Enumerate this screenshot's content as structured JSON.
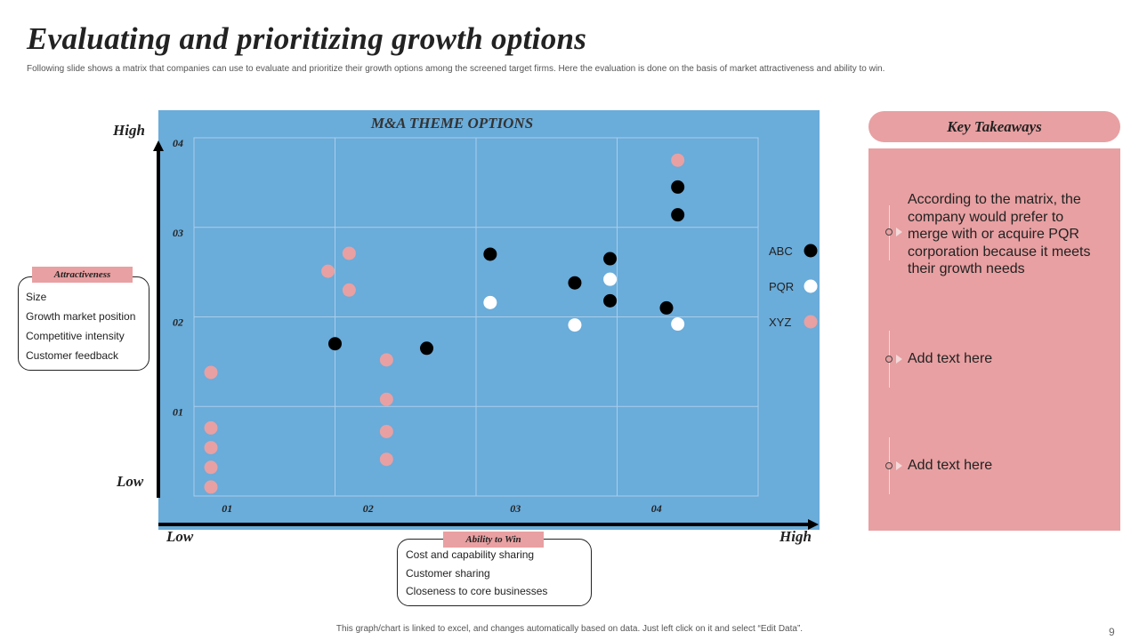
{
  "title": "Evaluating and prioritizing growth options",
  "subtitle": "Following slide shows a matrix that companies can use to evaluate and prioritize their growth options among the screened target firms. Here the evaluation is done on the basis of market attractiveness and ability to win.",
  "vertical_axis": {
    "high": "High",
    "low": "Low"
  },
  "horizontal_axis": {
    "low": "Low",
    "high": "High"
  },
  "attractiveness": {
    "tag": "Attractiveness",
    "items": [
      "Size",
      "Growth market position",
      "Competitive intensity",
      "Customer feedback"
    ]
  },
  "ability_to_win": {
    "tag": "Ability to Win",
    "items": [
      "Cost and capability sharing",
      "Customer sharing",
      "Closeness to core businesses"
    ]
  },
  "key_takeaways": {
    "header": "Key Takeaways",
    "items": [
      "According to the matrix, the company would prefer to merge with or acquire PQR corporation because it meets their growth needs",
      "Add text here",
      "Add text here"
    ]
  },
  "footer": "This graph/chart is linked to excel, and changes automatically based on data. Just left click on it and select “Edit Data”.",
  "page_number": "9",
  "colors": {
    "plot_bg": "#6aacda",
    "accent_pink": "#e8a0a2",
    "abc": "#000000",
    "pqr": "#ffffff",
    "xyz": "#e8a0a2"
  },
  "chart_data": {
    "type": "scatter",
    "title": "M&A THEME OPTIONS",
    "xlim": [
      0.5,
      4.5
    ],
    "ylim": [
      0,
      4
    ],
    "x_ticks": [
      "01",
      "02",
      "03",
      "04"
    ],
    "y_ticks": [
      "01",
      "02",
      "03",
      "04"
    ],
    "grid": true,
    "legend_position": "right",
    "series": [
      {
        "name": "ABC",
        "color": "#000000",
        "points": [
          [
            1.5,
            1.7
          ],
          [
            2.15,
            1.65
          ],
          [
            2.6,
            2.7
          ],
          [
            3.2,
            2.38
          ],
          [
            3.45,
            2.65
          ],
          [
            3.45,
            2.18
          ],
          [
            3.85,
            2.1
          ],
          [
            3.93,
            3.45
          ],
          [
            3.93,
            3.14
          ]
        ]
      },
      {
        "name": "PQR",
        "color": "#ffffff",
        "points": [
          [
            2.6,
            2.16
          ],
          [
            3.2,
            1.91
          ],
          [
            3.45,
            2.42
          ],
          [
            3.93,
            1.92
          ]
        ]
      },
      {
        "name": "XYZ",
        "color": "#e8a0a2",
        "points": [
          [
            0.62,
            1.38
          ],
          [
            0.62,
            0.76
          ],
          [
            0.62,
            0.54
          ],
          [
            0.62,
            0.32
          ],
          [
            0.62,
            0.1
          ],
          [
            1.45,
            2.51
          ],
          [
            1.6,
            2.71
          ],
          [
            1.6,
            2.3
          ],
          [
            1.865,
            1.52
          ],
          [
            1.865,
            1.08
          ],
          [
            1.865,
            0.72
          ],
          [
            1.865,
            0.41
          ],
          [
            3.93,
            3.75
          ]
        ]
      }
    ]
  }
}
